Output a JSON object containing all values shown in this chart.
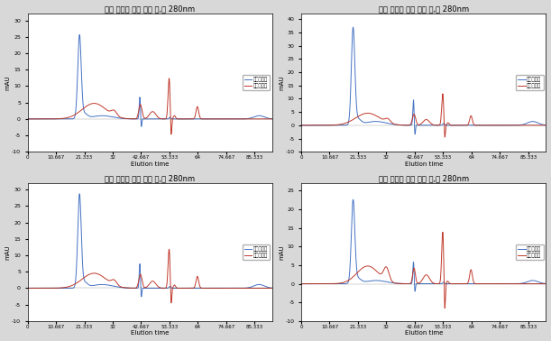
{
  "panels": [
    {
      "title": "백목 세리신 효소 제리 전,후 280nm",
      "legend_before": "백목제리전",
      "legend_after": "백목제리후",
      "ylim": [
        -10,
        32
      ],
      "yticks": [
        -10,
        -5,
        0,
        5,
        10,
        15,
        20,
        25,
        30
      ],
      "peak_before": 25.0,
      "peak_after": 12.5
    },
    {
      "title": "연녹 세리신 효소 제리 전,후 280nm",
      "legend_before": "연녹제리전",
      "legend_after": "연녹제리후",
      "ylim": [
        -10,
        42
      ],
      "yticks": [
        -10,
        -5,
        0,
        5,
        10,
        15,
        20,
        25,
        30,
        35,
        40
      ],
      "peak_before": 36.0,
      "peak_after": 12.0
    },
    {
      "title": "주황 세리신 효소 제리 전,후 280nm",
      "legend_before": "주황제리전",
      "legend_after": "주황제리후",
      "ylim": [
        -10,
        32
      ],
      "yticks": [
        -10,
        -5,
        0,
        5,
        10,
        15,
        20,
        25,
        30
      ],
      "peak_before": 28.0,
      "peak_after": 12.0
    },
    {
      "title": "골든 세리신 효소 제리 전,후 280nm",
      "legend_before": "골든제리전",
      "legend_after": "골든제리후",
      "ylim": [
        -10,
        27
      ],
      "yticks": [
        -10,
        -5,
        0,
        5,
        10,
        15,
        20,
        25
      ],
      "peak_before": 22.0,
      "peak_after": 14.0
    }
  ],
  "xticks": [
    0,
    10.667,
    21.333,
    32,
    42.667,
    53.333,
    64,
    74.667,
    85.333
  ],
  "xticklabels": [
    "0",
    "10.667",
    "21.333",
    "32",
    "42.667",
    "53.333",
    "64",
    "74.667",
    "85.333"
  ],
  "xlabel": "Elution time",
  "ylabel": "mAU",
  "color_before": "#4472C4",
  "color_after": "#C0392B",
  "fig_bg": "#D8D8D8",
  "panel_bg": "#FFFFFF",
  "xlim": [
    0,
    92
  ]
}
